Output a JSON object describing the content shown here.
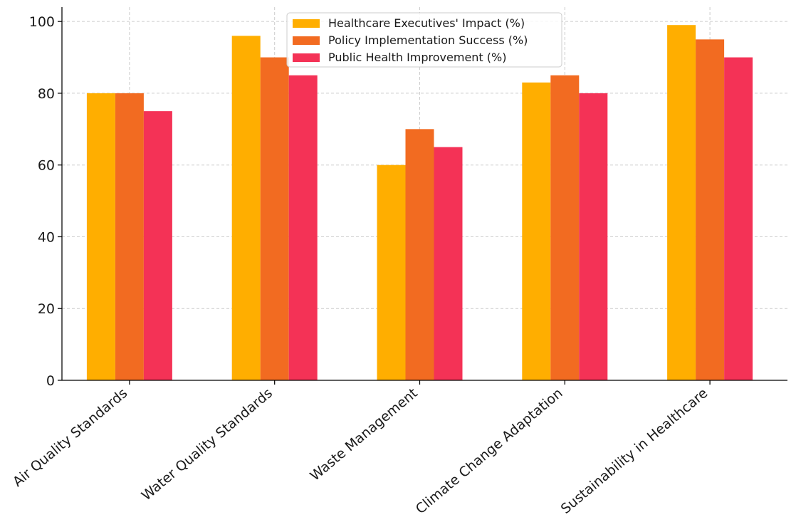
{
  "chart_data": {
    "type": "bar",
    "categories": [
      "Air Quality Standards",
      "Water Quality Standards",
      "Waste Management",
      "Climate Change Adaptation",
      "Sustainability in Healthcare"
    ],
    "series": [
      {
        "name": "Healthcare Executives' Impact (%)",
        "color": "#FFAE00",
        "values": [
          80,
          96,
          60,
          83,
          99
        ]
      },
      {
        "name": "Policy Implementation Success (%)",
        "color": "#F26B21",
        "values": [
          80,
          90,
          70,
          85,
          95
        ]
      },
      {
        "name": "Public Health Improvement (%)",
        "color": "#F43256",
        "values": [
          75,
          85,
          65,
          80,
          90
        ]
      }
    ],
    "ylim": [
      0,
      104
    ],
    "yticks": [
      0,
      20,
      40,
      60,
      80,
      100
    ],
    "title": "",
    "xlabel": "",
    "ylabel": "",
    "grid": true,
    "legend_position": "top-center"
  }
}
